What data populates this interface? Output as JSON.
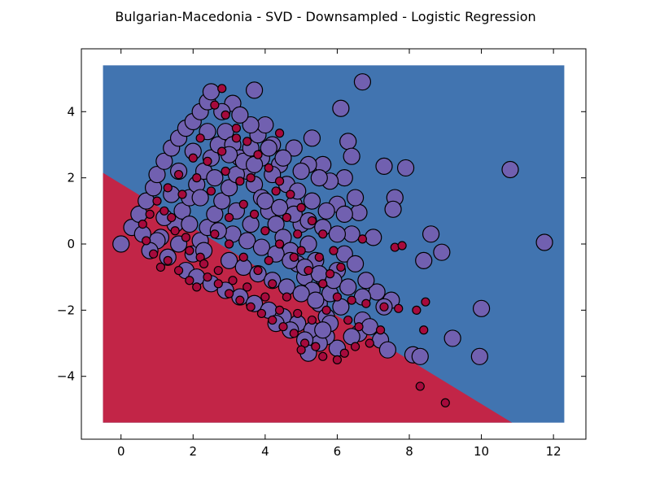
{
  "chart_data": {
    "type": "scatter",
    "title": "Bulgarian-Macedonia - SVD - Downsampled - Logistic Regression",
    "xlabel": "",
    "ylabel": "",
    "xlim": [
      -1.1,
      12.9
    ],
    "ylim": [
      -5.9,
      5.9
    ],
    "x_ticks": [
      0,
      2,
      4,
      6,
      8,
      10,
      12
    ],
    "y_ticks": [
      -4,
      -2,
      0,
      2,
      4
    ],
    "x_tick_labels": [
      "0",
      "2",
      "4",
      "6",
      "8",
      "10",
      "12"
    ],
    "y_tick_labels": [
      "−4",
      "−2",
      "0",
      "2",
      "4"
    ],
    "grid": false,
    "legend": "none",
    "decision_regions": {
      "extent": {
        "x": [
          -0.5,
          12.3
        ],
        "y": [
          -5.4,
          5.4
        ]
      },
      "boundary": [
        [
          -0.5,
          2.15
        ],
        [
          10.85,
          -5.4
        ]
      ],
      "upper_color": "#4174b0",
      "lower_color": "#c22547"
    },
    "series": [
      {
        "class": "Macedonian",
        "color": "#7160b0",
        "marker_size": "large",
        "points": [
          [
            0.0,
            0.0
          ],
          [
            0.3,
            0.5
          ],
          [
            0.5,
            0.9
          ],
          [
            0.7,
            1.3
          ],
          [
            0.9,
            1.7
          ],
          [
            1.0,
            2.1
          ],
          [
            1.2,
            2.5
          ],
          [
            1.4,
            2.9
          ],
          [
            1.6,
            3.2
          ],
          [
            1.8,
            3.5
          ],
          [
            2.0,
            3.7
          ],
          [
            2.2,
            4.0
          ],
          [
            2.4,
            4.3
          ],
          [
            2.5,
            4.6
          ],
          [
            3.7,
            4.65
          ],
          [
            3.1,
            4.25
          ],
          [
            6.7,
            4.9
          ],
          [
            6.1,
            4.1
          ],
          [
            6.3,
            3.1
          ],
          [
            6.4,
            2.65
          ],
          [
            5.3,
            3.2
          ],
          [
            7.3,
            2.35
          ],
          [
            7.9,
            2.3
          ],
          [
            10.8,
            2.25
          ],
          [
            7.6,
            1.4
          ],
          [
            7.55,
            1.05
          ],
          [
            11.75,
            0.05
          ],
          [
            8.6,
            0.3
          ],
          [
            8.9,
            -0.25
          ],
          [
            8.4,
            -0.5
          ],
          [
            6.6,
            0.95
          ],
          [
            6.5,
            1.4
          ],
          [
            6.2,
            2.0
          ],
          [
            7.0,
            0.2
          ],
          [
            7.5,
            -1.7
          ],
          [
            7.2,
            -2.9
          ],
          [
            7.4,
            -3.2
          ],
          [
            8.1,
            -3.35
          ],
          [
            8.3,
            -3.4
          ],
          [
            9.2,
            -2.85
          ],
          [
            10.0,
            -1.95
          ],
          [
            9.95,
            -3.4
          ],
          [
            6.0,
            -3.15
          ],
          [
            6.6,
            -2.7
          ],
          [
            6.7,
            -2.3
          ],
          [
            7.1,
            -1.45
          ],
          [
            7.3,
            -1.9
          ],
          [
            1.1,
            0.2
          ],
          [
            1.3,
            -0.4
          ],
          [
            1.5,
            0.6
          ],
          [
            1.7,
            1.0
          ],
          [
            1.9,
            1.4
          ],
          [
            2.1,
            1.8
          ],
          [
            2.3,
            2.2
          ],
          [
            2.5,
            2.6
          ],
          [
            2.7,
            3.0
          ],
          [
            2.9,
            3.4
          ],
          [
            3.1,
            3.0
          ],
          [
            3.3,
            2.6
          ],
          [
            3.5,
            2.2
          ],
          [
            3.7,
            1.8
          ],
          [
            3.9,
            1.4
          ],
          [
            4.1,
            1.0
          ],
          [
            4.3,
            0.6
          ],
          [
            4.5,
            0.2
          ],
          [
            4.7,
            -0.2
          ],
          [
            4.9,
            -0.6
          ],
          [
            5.1,
            -1.0
          ],
          [
            5.3,
            -1.4
          ],
          [
            5.5,
            -1.8
          ],
          [
            5.7,
            -2.2
          ],
          [
            2.0,
            -0.3
          ],
          [
            2.2,
            0.1
          ],
          [
            2.4,
            0.5
          ],
          [
            2.6,
            0.9
          ],
          [
            2.8,
            1.3
          ],
          [
            3.0,
            1.7
          ],
          [
            3.2,
            2.1
          ],
          [
            3.4,
            2.5
          ],
          [
            3.6,
            2.9
          ],
          [
            3.8,
            3.3
          ],
          [
            4.0,
            3.6
          ],
          [
            4.2,
            3.0
          ],
          [
            4.4,
            2.4
          ],
          [
            4.6,
            1.8
          ],
          [
            4.8,
            1.2
          ],
          [
            5.0,
            0.6
          ],
          [
            5.2,
            0.0
          ],
          [
            5.4,
            -0.5
          ],
          [
            5.6,
            -1.0
          ],
          [
            5.8,
            -1.5
          ],
          [
            6.0,
            -0.8
          ],
          [
            6.2,
            -0.3
          ],
          [
            6.4,
            0.3
          ],
          [
            6.0,
            1.2
          ],
          [
            5.8,
            1.9
          ],
          [
            5.6,
            2.4
          ],
          [
            5.2,
            2.4
          ],
          [
            4.8,
            2.9
          ],
          [
            4.5,
            2.6
          ],
          [
            4.2,
            2.1
          ],
          [
            3.9,
            2.6
          ],
          [
            3.6,
            3.6
          ],
          [
            3.3,
            3.9
          ],
          [
            2.8,
            4.0
          ],
          [
            2.4,
            3.4
          ],
          [
            2.0,
            2.8
          ],
          [
            1.6,
            2.2
          ],
          [
            1.4,
            1.5
          ],
          [
            1.2,
            0.8
          ],
          [
            1.0,
            0.1
          ],
          [
            0.8,
            -0.2
          ],
          [
            0.6,
            0.3
          ],
          [
            1.8,
            -0.8
          ],
          [
            2.1,
            -1.0
          ],
          [
            2.5,
            -1.2
          ],
          [
            2.9,
            -1.4
          ],
          [
            3.3,
            -1.6
          ],
          [
            3.7,
            -1.8
          ],
          [
            4.1,
            -2.0
          ],
          [
            4.5,
            -2.2
          ],
          [
            4.9,
            -2.4
          ],
          [
            5.3,
            -2.6
          ],
          [
            5.7,
            -2.8
          ],
          [
            3.0,
            -0.5
          ],
          [
            3.4,
            -0.7
          ],
          [
            3.8,
            -0.9
          ],
          [
            4.2,
            -1.1
          ],
          [
            4.6,
            -1.3
          ],
          [
            5.0,
            -1.5
          ],
          [
            5.4,
            -1.7
          ],
          [
            3.1,
            0.3
          ],
          [
            3.5,
            0.1
          ],
          [
            3.9,
            -0.1
          ],
          [
            4.3,
            -0.3
          ],
          [
            4.7,
            -0.5
          ],
          [
            5.1,
            -0.7
          ],
          [
            5.5,
            -0.9
          ],
          [
            5.9,
            -1.1
          ],
          [
            6.3,
            -1.3
          ],
          [
            6.7,
            -1.6
          ],
          [
            4.0,
            1.3
          ],
          [
            4.4,
            1.1
          ],
          [
            4.8,
            0.9
          ],
          [
            5.2,
            0.7
          ],
          [
            5.6,
            0.5
          ],
          [
            6.0,
            0.3
          ],
          [
            3.2,
            1.0
          ],
          [
            2.7,
            0.4
          ],
          [
            2.3,
            -0.2
          ],
          [
            3.6,
            0.6
          ],
          [
            4.9,
            1.6
          ],
          [
            5.3,
            1.3
          ],
          [
            5.7,
            1.0
          ],
          [
            4.1,
            2.9
          ],
          [
            3.7,
            2.4
          ],
          [
            3.0,
            2.7
          ],
          [
            2.6,
            2.0
          ],
          [
            2.2,
            1.4
          ],
          [
            1.9,
            0.6
          ],
          [
            1.6,
            0.0
          ],
          [
            5.5,
            2.0
          ],
          [
            5.0,
            2.2
          ],
          [
            6.2,
            0.9
          ],
          [
            6.5,
            -0.6
          ],
          [
            6.8,
            -1.1
          ],
          [
            6.1,
            -1.9
          ],
          [
            5.8,
            -2.4
          ],
          [
            5.5,
            -3.0
          ],
          [
            5.1,
            -2.9
          ],
          [
            4.7,
            -2.6
          ],
          [
            4.3,
            -2.4
          ],
          [
            5.2,
            -3.3
          ],
          [
            5.6,
            -2.6
          ],
          [
            6.4,
            -2.8
          ],
          [
            6.9,
            -2.5
          ]
        ]
      },
      {
        "class": "Bulgarian",
        "color": "#a60a3c",
        "marker_size": "small",
        "points": [
          [
            2.8,
            4.7
          ],
          [
            4.4,
            3.35
          ],
          [
            2.2,
            3.2
          ],
          [
            2.0,
            2.6
          ],
          [
            1.6,
            2.1
          ],
          [
            1.3,
            1.7
          ],
          [
            1.0,
            1.3
          ],
          [
            0.8,
            0.9
          ],
          [
            0.6,
            0.6
          ],
          [
            0.7,
            0.1
          ],
          [
            0.9,
            -0.3
          ],
          [
            1.1,
            -0.7
          ],
          [
            1.3,
            -0.5
          ],
          [
            1.6,
            -0.8
          ],
          [
            1.9,
            -1.1
          ],
          [
            2.1,
            -1.3
          ],
          [
            2.4,
            -1.0
          ],
          [
            2.7,
            -1.2
          ],
          [
            3.0,
            -1.5
          ],
          [
            3.3,
            -1.7
          ],
          [
            3.6,
            -1.9
          ],
          [
            3.9,
            -2.1
          ],
          [
            4.2,
            -2.3
          ],
          [
            4.5,
            -2.5
          ],
          [
            4.8,
            -2.7
          ],
          [
            5.1,
            -3.0
          ],
          [
            5.4,
            -3.1
          ],
          [
            5.6,
            -3.4
          ],
          [
            6.0,
            -3.5
          ],
          [
            6.2,
            -3.3
          ],
          [
            6.5,
            -3.1
          ],
          [
            6.9,
            -3.0
          ],
          [
            7.2,
            -2.6
          ],
          [
            7.3,
            -1.9
          ],
          [
            7.7,
            -1.95
          ],
          [
            7.6,
            -0.1
          ],
          [
            7.8,
            -0.05
          ],
          [
            6.7,
            0.15
          ],
          [
            8.2,
            -2.0
          ],
          [
            8.45,
            -1.75
          ],
          [
            8.4,
            -2.6
          ],
          [
            8.3,
            -4.3
          ],
          [
            9.0,
            -4.8
          ],
          [
            6.4,
            -1.7
          ],
          [
            6.8,
            -1.8
          ],
          [
            6.1,
            -0.7
          ],
          [
            5.9,
            -0.2
          ],
          [
            5.6,
            0.3
          ],
          [
            5.3,
            0.7
          ],
          [
            5.0,
            1.1
          ],
          [
            4.7,
            1.5
          ],
          [
            4.4,
            1.9
          ],
          [
            4.1,
            2.3
          ],
          [
            3.8,
            2.7
          ],
          [
            3.5,
            3.1
          ],
          [
            3.2,
            3.5
          ],
          [
            2.9,
            3.9
          ],
          [
            2.6,
            4.2
          ],
          [
            3.4,
            1.2
          ],
          [
            3.0,
            0.8
          ],
          [
            2.6,
            0.3
          ],
          [
            2.2,
            -0.4
          ],
          [
            1.8,
            0.2
          ],
          [
            1.4,
            0.8
          ],
          [
            4.0,
            0.4
          ],
          [
            4.4,
            0.0
          ],
          [
            4.8,
            -0.4
          ],
          [
            5.2,
            -0.8
          ],
          [
            5.6,
            -1.2
          ],
          [
            6.0,
            -1.6
          ],
          [
            4.6,
            -1.6
          ],
          [
            4.2,
            -1.2
          ],
          [
            3.8,
            -0.8
          ],
          [
            3.4,
            -0.4
          ],
          [
            3.0,
            0.0
          ],
          [
            2.5,
            1.6
          ],
          [
            2.9,
            2.2
          ],
          [
            3.3,
            1.9
          ],
          [
            3.7,
            0.9
          ],
          [
            4.1,
            -0.5
          ],
          [
            4.6,
            0.8
          ],
          [
            5.0,
            -0.2
          ],
          [
            5.5,
            -0.4
          ],
          [
            5.7,
            -2.0
          ],
          [
            5.3,
            -2.3
          ],
          [
            4.9,
            -2.1
          ],
          [
            4.4,
            -2.0
          ],
          [
            4.0,
            -1.6
          ],
          [
            3.5,
            -1.3
          ],
          [
            3.1,
            -1.1
          ],
          [
            2.7,
            -0.8
          ],
          [
            2.3,
            -0.6
          ],
          [
            1.9,
            -0.2
          ],
          [
            1.5,
            0.4
          ],
          [
            1.2,
            1.0
          ],
          [
            1.7,
            1.5
          ],
          [
            2.1,
            2.0
          ],
          [
            2.4,
            2.5
          ],
          [
            2.8,
            2.8
          ],
          [
            3.2,
            3.2
          ],
          [
            3.6,
            2.0
          ],
          [
            4.3,
            1.6
          ],
          [
            4.9,
            0.3
          ],
          [
            5.8,
            -0.9
          ],
          [
            6.3,
            -2.3
          ],
          [
            6.6,
            -2.5
          ],
          [
            5.0,
            -3.2
          ]
        ]
      }
    ]
  }
}
